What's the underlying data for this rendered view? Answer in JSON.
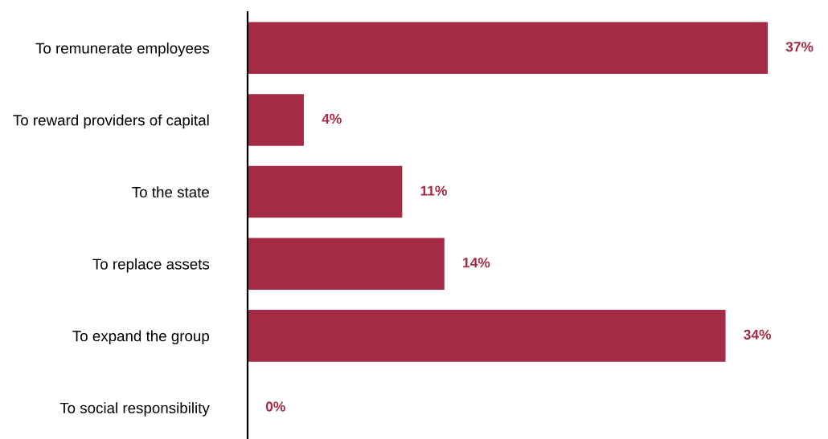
{
  "chart_data": {
    "type": "bar",
    "orientation": "horizontal",
    "categories": [
      "To remunerate employees",
      "To reward providers of capital",
      "To the state",
      "To replace assets",
      "To expand the group",
      "To social responsibility"
    ],
    "values": [
      37,
      4,
      11,
      14,
      34,
      0
    ],
    "color": "#a52a45",
    "tick_labels": "y",
    "data_labels": true,
    "value_labels": [
      "37%",
      "4%",
      "11%",
      "14%",
      "34%",
      "0%"
    ],
    "grid": false,
    "legend": false
  }
}
